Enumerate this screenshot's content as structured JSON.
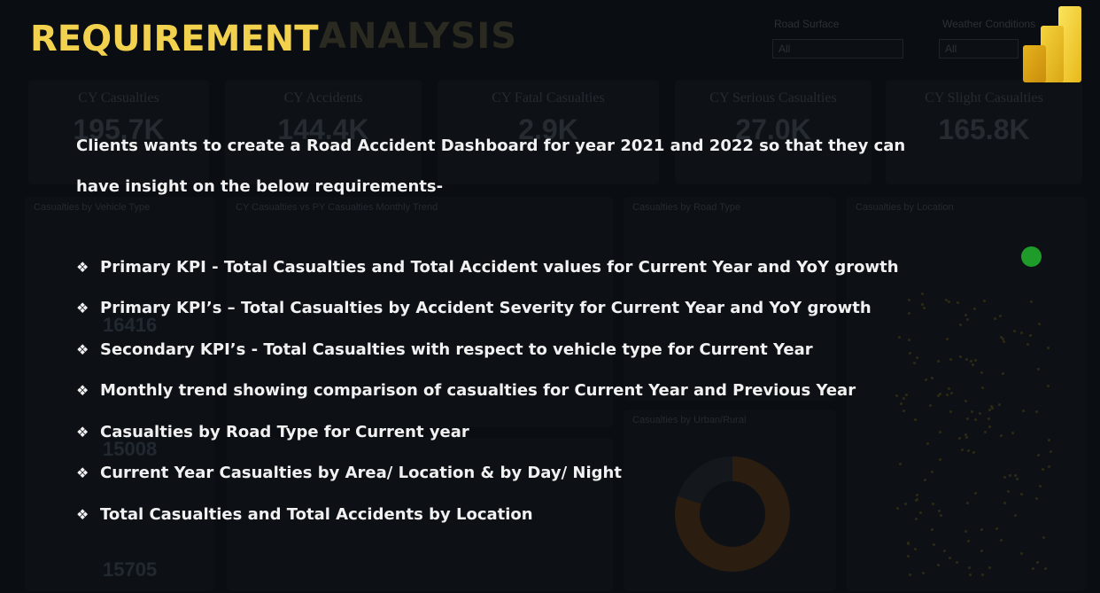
{
  "slide": {
    "heading": "REQUIREMENT",
    "intro_line1": "Clients wants to create a Road Accident Dashboard for year 2021 and 2022 so that they can",
    "intro_line2": "have insight on the below requirements-",
    "bullet_glyph": "❖",
    "requirements": [
      "Primary KPI - Total Casualties and Total Accident values for Current Year and YoY growth",
      "Primary KPI’s – Total Casualties by Accident Severity for Current Year and YoY growth",
      "Secondary KPI’s - Total Casualties with respect to vehicle type for Current Year",
      "Monthly trend showing comparison of casualties for Current Year and Previous Year",
      "Casualties by Road Type for Current year",
      "Current Year Casualties by Area/ Location & by Day/ Night",
      "Total Casualties and Total Accidents by Location"
    ],
    "logo_icon": "power-bi-logo-icon",
    "status_dot_color": "#1f9b2a",
    "heading_color": "#f2d14e"
  },
  "background_dashboard": {
    "title": "ANALYSIS",
    "filters": [
      {
        "label": "Road Surface",
        "value": "All"
      },
      {
        "label": "Weather Conditions",
        "value": "All"
      }
    ],
    "kpis": [
      {
        "label": "CY Casualties",
        "value": "195.7K"
      },
      {
        "label": "CY Accidents",
        "value": "144.4K"
      },
      {
        "label": "CY Fatal Casualties",
        "value": "2.9K"
      },
      {
        "label": "CY Serious Casualties",
        "value": "27.0K"
      },
      {
        "label": "CY Slight Casualties",
        "value": "165.8K"
      }
    ],
    "panels": {
      "vehicle_type": "Casualties by Vehicle Type",
      "monthly_trend": "CY Casualties vs PY Casualties Monthly Trend",
      "road_type": "Casualties by Road Type",
      "location": "Casualties by Location",
      "urban_rural": "Casualties by Urban/Rural"
    },
    "vehicle_numbers": [
      "16416",
      "15008",
      "15705"
    ]
  }
}
